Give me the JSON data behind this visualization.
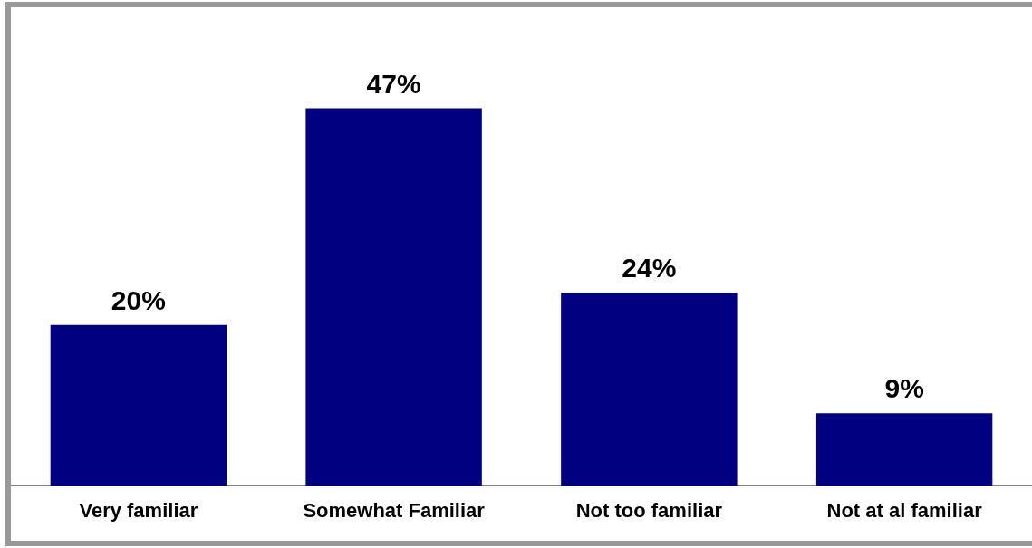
{
  "chart_data": {
    "type": "bar",
    "categories": [
      "Very familiar",
      "Somewhat Familiar",
      "Not too familiar",
      "Not at al familiar"
    ],
    "values": [
      20,
      47,
      24,
      9
    ],
    "value_labels": [
      "20%",
      "47%",
      "24%",
      "9%"
    ],
    "color": "#000080",
    "tick_labels": "x"
  }
}
